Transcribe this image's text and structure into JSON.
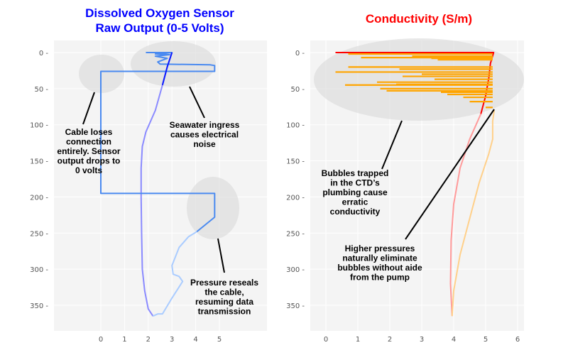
{
  "chart_data": [
    {
      "type": "line",
      "title": "Dissolved Oxygen Sensor\nRaw Output (0-5 Volts)",
      "title_color": "#0000ff",
      "xticks": [
        0,
        1,
        2,
        3,
        4,
        5
      ],
      "yticks": [
        0,
        50,
        100,
        150,
        200,
        250,
        300,
        350
      ],
      "xlim": [
        -2,
        7
      ],
      "ylim": [
        385,
        -17
      ],
      "grid": true,
      "series": [
        {
          "color": "#8a8aff",
          "points": [
            [
              3,
              0
            ],
            [
              2.8,
              20
            ],
            [
              2.6,
              45
            ],
            [
              2.3,
              80
            ],
            [
              1.9,
              110
            ],
            [
              1.75,
              130
            ],
            [
              1.7,
              160
            ],
            [
              1.7,
              200
            ],
            [
              1.72,
              250
            ],
            [
              1.75,
              300
            ],
            [
              1.85,
              330
            ],
            [
              2.0,
              355
            ],
            [
              2.2,
              365
            ]
          ]
        },
        {
          "color": "#aaccff",
          "points": [
            [
              2.2,
              365
            ],
            [
              2.4,
              362
            ],
            [
              2.6,
              362
            ],
            [
              3.0,
              340
            ],
            [
              3.45,
              317
            ],
            [
              3.3,
              310
            ],
            [
              3.05,
              307
            ],
            [
              3.0,
              295
            ],
            [
              3.3,
              270
            ],
            [
              3.7,
              255
            ],
            [
              4.05,
              248
            ]
          ]
        },
        {
          "color": "#4a8af0",
          "points": [
            [
              4.05,
              248
            ],
            [
              4.8,
              228
            ],
            [
              4.8,
              195
            ],
            [
              0,
              195
            ],
            [
              0,
              26
            ],
            [
              4.8,
              26
            ],
            [
              4.8,
              18
            ],
            [
              4.6,
              17
            ],
            [
              2.5,
              16
            ],
            [
              2.4,
              13
            ],
            [
              2.8,
              8
            ],
            [
              2.3,
              5
            ],
            [
              2.9,
              3
            ],
            [
              2.3,
              2
            ],
            [
              3,
              0
            ],
            [
              1.9,
              0
            ]
          ]
        },
        {
          "color": "#0a1aff",
          "points": [
            [
              3,
              0
            ],
            [
              2.8,
              20
            ],
            [
              2.6,
              45
            ]
          ]
        }
      ],
      "annotations": [
        {
          "text": "Cable loses\nconnection\nentirely. Sensor\noutput drops to\n0 volts"
        },
        {
          "text": "Seawater ingress\ncauses electrical\nnoise"
        },
        {
          "text": "Pressure reseals\nthe cable,\nresuming data\ntransmission"
        }
      ]
    },
    {
      "type": "line",
      "title": "Conductivity (S/m)",
      "title_color": "#ff0000",
      "xticks": [
        0,
        1,
        2,
        3,
        4,
        5,
        6
      ],
      "yticks": [
        0,
        50,
        100,
        150,
        200,
        250,
        300,
        350
      ],
      "xlim": [
        -0.5,
        6.2
      ],
      "ylim": [
        385,
        -17
      ],
      "grid": true,
      "series": [
        {
          "color": "#ff0000",
          "points": [
            [
              0.3,
              0
            ],
            [
              5.25,
              0
            ],
            [
              5.15,
              15
            ],
            [
              5.1,
              35
            ],
            [
              5.0,
              60
            ],
            [
              4.85,
              85
            ]
          ]
        },
        {
          "color": "#ff9a9a",
          "points": [
            [
              4.85,
              85
            ],
            [
              4.5,
              120
            ],
            [
              4.2,
              160
            ],
            [
              4.0,
              210
            ],
            [
              3.92,
              260
            ],
            [
              3.9,
              320
            ],
            [
              3.95,
              365
            ]
          ]
        },
        {
          "color": "#ffd08a",
          "points": [
            [
              3.95,
              365
            ],
            [
              4.0,
              330
            ],
            [
              4.2,
              280
            ],
            [
              4.5,
              230
            ],
            [
              4.8,
              180
            ],
            [
              5.1,
              140
            ],
            [
              5.22,
              120
            ],
            [
              5.22,
              95
            ],
            [
              5.27,
              80
            ]
          ]
        },
        {
          "color": "#ffa500",
          "spikes": [
            [
              2,
              0.7
            ],
            [
              5,
              2.7
            ],
            [
              7,
              1.1
            ],
            [
              8,
              3.3
            ],
            [
              10,
              3.5
            ],
            [
              20,
              0.7
            ],
            [
              23,
              2.3
            ],
            [
              27,
              0.3
            ],
            [
              30,
              3.0
            ],
            [
              33,
              2.4
            ],
            [
              37,
              3.4
            ],
            [
              41,
              1.6
            ],
            [
              44,
              2.2
            ],
            [
              45,
              0.6
            ],
            [
              50,
              1.7
            ],
            [
              53,
              1.9
            ],
            [
              55,
              3.6
            ],
            [
              58,
              3.8
            ],
            [
              62,
              4.3
            ],
            [
              68,
              4.5
            ],
            [
              76,
              5.0
            ]
          ]
        }
      ],
      "annotations": [
        {
          "text": "Bubbles trapped\nin the CTD’s\nplumbing cause\nerratic\nconductivity"
        },
        {
          "text": "Higher pressures\nnaturally eliminate\nbubbles without aide\nfrom the pump"
        }
      ]
    }
  ]
}
